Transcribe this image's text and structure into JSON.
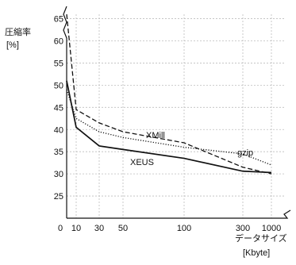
{
  "chart_data": {
    "type": "line",
    "title": "",
    "ylabel": "圧縮率",
    "ylabel_unit": "[%]",
    "xlabel": "データサイズ",
    "xlabel_unit": "[Kbyte]",
    "x_tick_labels": [
      "0",
      "10",
      "30",
      "50",
      "100",
      "300",
      "1000"
    ],
    "y_ticks": [
      25,
      30,
      35,
      40,
      45,
      50,
      55,
      60,
      65
    ],
    "ylim": [
      20,
      66
    ],
    "grid": true,
    "series": [
      {
        "name": "XEUS",
        "style": "solid",
        "color": "#111111",
        "points": [
          {
            "x": "0",
            "y": 51
          },
          {
            "x": "10",
            "y": 40.5
          },
          {
            "x": "30",
            "y": 36.3
          },
          {
            "x": "50",
            "y": 35.5
          },
          {
            "x": "100",
            "y": 33.5
          },
          {
            "x": "300",
            "y": 30.6
          },
          {
            "x": "1000",
            "y": 30.3
          }
        ]
      },
      {
        "name": "XMill",
        "style": "dashed",
        "color": "#111111",
        "points": [
          {
            "x": "0",
            "y": 66
          },
          {
            "x": "10",
            "y": 44.5
          },
          {
            "x": "30",
            "y": 41.5
          },
          {
            "x": "50",
            "y": 39.5
          },
          {
            "x": "100",
            "y": 37
          },
          {
            "x": "300",
            "y": 31.5
          },
          {
            "x": "1000",
            "y": 30
          }
        ]
      },
      {
        "name": "gzip",
        "style": "dotted",
        "color": "#111111",
        "points": [
          {
            "x": "0",
            "y": 49
          },
          {
            "x": "10",
            "y": 42.5
          },
          {
            "x": "30",
            "y": 39.5
          },
          {
            "x": "50",
            "y": 38.2
          },
          {
            "x": "100",
            "y": 36
          },
          {
            "x": "300",
            "y": 34.5
          },
          {
            "x": "1000",
            "y": 32
          }
        ]
      }
    ],
    "series_labels": {
      "XMill": "XMill",
      "gzip": "gzip",
      "XEUS": "XEUS"
    }
  }
}
